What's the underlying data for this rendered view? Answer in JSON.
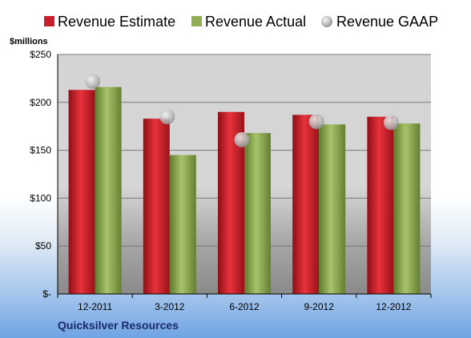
{
  "chart_data": {
    "type": "bar",
    "unit_label": "$millions",
    "company": "Quicksilver Resources",
    "categories": [
      "12-2011",
      "3-2012",
      "6-2012",
      "9-2012",
      "12-2012"
    ],
    "y_ticks": [
      "$-",
      "$50",
      "$100",
      "$150",
      "$200",
      "$250"
    ],
    "ylim": [
      0,
      250
    ],
    "grid": true,
    "legend_position": "top",
    "series": [
      {
        "name": "Revenue Estimate",
        "kind": "bar",
        "color": "#c8202a",
        "values": [
          213,
          183,
          190,
          187,
          185
        ]
      },
      {
        "name": "Revenue Actual",
        "kind": "bar",
        "color": "#8fae54",
        "values": [
          216,
          145,
          168,
          177,
          178
        ]
      },
      {
        "name": "Revenue GAAP",
        "kind": "marker",
        "color": "#b9b9b9",
        "values": [
          222,
          185,
          161,
          180,
          179
        ]
      }
    ]
  }
}
